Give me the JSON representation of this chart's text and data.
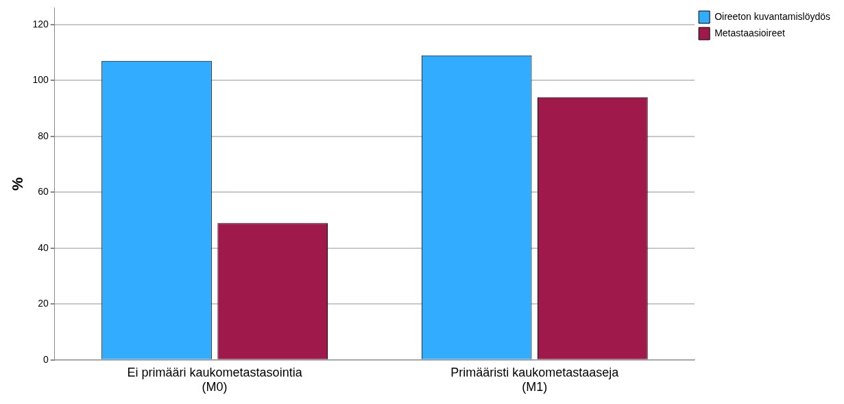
{
  "chart_data": {
    "type": "bar",
    "ylabel": "%",
    "categories": [
      "Ei primääri kaukometastasointia\n(M0)",
      "Primääristi kaukometastaaseja\n(M1)"
    ],
    "series": [
      {
        "name": "Oireeton kuvantamislöydös",
        "color": "#31acff",
        "values": [
          107,
          109
        ]
      },
      {
        "name": "Metastaasioireet",
        "color": "#9f1a4b",
        "values": [
          49,
          94
        ]
      }
    ],
    "ylim": [
      0,
      126
    ],
    "yticks": [
      0,
      20,
      40,
      60,
      80,
      100,
      120
    ],
    "grid": "y",
    "legend": "top right"
  }
}
